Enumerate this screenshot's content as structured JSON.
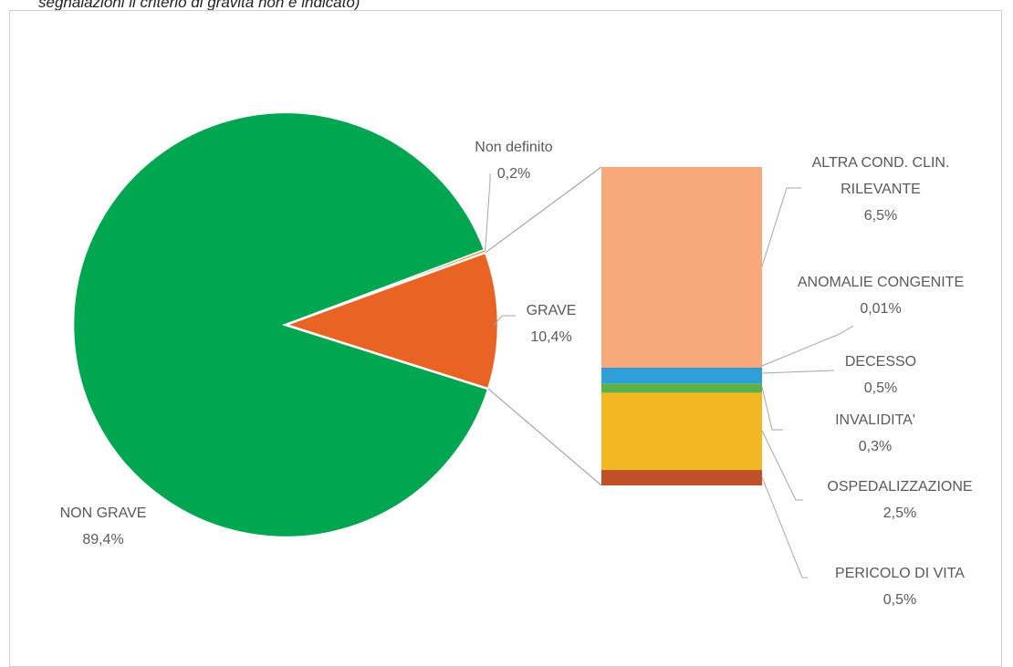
{
  "caption": "segnalazioni il criterio di gravità non è indicato)",
  "chart_data": {
    "type": "pie",
    "subtype": "bar-of-pie",
    "colors": {
      "NON GRAVE": "#00a650",
      "GRAVE": "#e96424",
      "Non definito": "#ed7d31",
      "ALTRA COND. CLIN. RILEVANTE": "#f7a97c",
      "ANOMALIE CONGENITE": "#4472c4",
      "DECESSO": "#2e9fd8",
      "INVALIDITA'": "#5bb14a",
      "OSPEDALIZZAZIONE": "#f4b724",
      "PERICOLO DI VITA": "#c0502a",
      "leader": "#a6a6a6",
      "border": "#d0d0d0"
    },
    "pie": [
      {
        "label": "NON GRAVE",
        "value": 89.4,
        "value_label": "89,4%"
      },
      {
        "label": "GRAVE",
        "value": 10.4,
        "value_label": "10,4%"
      },
      {
        "label": "Non definito",
        "value": 0.2,
        "value_label": "0,2%"
      }
    ],
    "bar": [
      {
        "label": "ALTRA COND. CLIN. RILEVANTE",
        "label_lines": [
          "ALTRA COND. CLIN.",
          "RILEVANTE"
        ],
        "value": 6.5,
        "value_label": "6,5%"
      },
      {
        "label": "ANOMALIE CONGENITE",
        "label_lines": [
          "ANOMALIE CONGENITE"
        ],
        "value": 0.01,
        "value_label": "0,01%"
      },
      {
        "label": "DECESSO",
        "label_lines": [
          "DECESSO"
        ],
        "value": 0.5,
        "value_label": "0,5%"
      },
      {
        "label": "INVALIDITA'",
        "label_lines": [
          "INVALIDITA'"
        ],
        "value": 0.3,
        "value_label": "0,3%"
      },
      {
        "label": "OSPEDALIZZAZIONE",
        "label_lines": [
          "OSPEDALIZZAZIONE"
        ],
        "value": 2.5,
        "value_label": "2,5%"
      },
      {
        "label": "PERICOLO DI VITA",
        "label_lines": [
          "PERICOLO DI VITA"
        ],
        "value": 0.5,
        "value_label": "0,5%"
      }
    ]
  }
}
